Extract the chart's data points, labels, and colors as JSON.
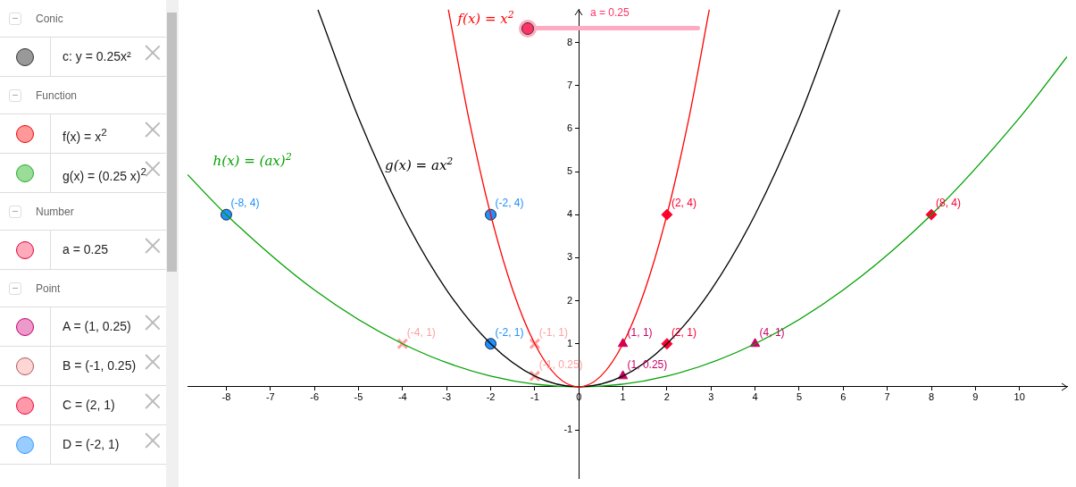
{
  "chart_data": [
    {
      "type": "other",
      "annotations": [
        "Conic",
        "c: y = 0.25x²",
        "Function",
        "f(x) = x$^{2}$",
        "g(x) = (0.25 x)$^{2}$",
        "Number",
        "a = 0.25",
        "Point",
        "A = (1, 0.25)",
        "B = (-1, 0.25)",
        "C = (2, 1)",
        "D = (-2, 1)"
      ]
    },
    {
      "type": "line",
      "xlim": [
        -8.88,
        11.08
      ],
      "ylim": [
        -2.12,
        8.78
      ],
      "xticks": [
        -8,
        -7,
        -6,
        -5,
        -4,
        -3,
        -2,
        -1,
        0,
        1,
        2,
        3,
        4,
        5,
        6,
        7,
        8,
        9,
        10
      ],
      "yticks": [
        -1,
        1,
        2,
        3,
        4,
        5,
        6,
        7,
        8
      ],
      "annotations": [
        "a = 0.25"
      ],
      "series": [
        {
          "type": "line",
          "name": "f(x) = x$^{2}$",
          "color": "#ff0000",
          "x": [
            -2.96,
            -2.5,
            -2,
            -1.5,
            -1,
            -0.5,
            0,
            0.5,
            1,
            1.5,
            2,
            2.5,
            2.96
          ],
          "values": [
            8.76,
            6.25,
            4,
            2.25,
            1,
            0.25,
            0,
            0.25,
            1,
            2.25,
            4,
            6.25,
            8.76
          ]
        },
        {
          "type": "line",
          "name": "g(x) = ax$^{2}$",
          "color": "#000000",
          "x": [
            -5.92,
            -5,
            -4,
            -3,
            -2,
            -1,
            0,
            1,
            2,
            3,
            4,
            5,
            5.92
          ],
          "values": [
            8.76,
            6.25,
            4,
            2.25,
            1,
            0.25,
            0,
            0.25,
            1,
            2.25,
            4,
            6.25,
            8.76
          ]
        },
        {
          "type": "line",
          "name": "h(x) = (ax)$^{2}$",
          "color": "#00a000",
          "x": [
            -8.88,
            -8,
            -6,
            -4,
            -2,
            0,
            2,
            4,
            6,
            8,
            10,
            11.08
          ],
          "values": [
            4.93,
            4,
            2.25,
            1,
            0.25,
            0,
            0.25,
            1,
            2.25,
            4,
            6.25,
            7.67
          ]
        },
        {
          "type": "scatter",
          "marker": "circle",
          "color": "#1e90ff",
          "x": [
            -8,
            -2,
            -2
          ],
          "values": [
            4,
            4,
            1
          ],
          "value_labels": [
            "(-8, 4)",
            "(-2, 4)",
            "(-2, 1)"
          ]
        },
        {
          "type": "scatter",
          "marker": "diamond",
          "color": "#ff0033",
          "x": [
            2,
            8,
            2
          ],
          "values": [
            4,
            4,
            1
          ],
          "value_labels": [
            "(2, 4)",
            "(8, 4)",
            "(2, 1)"
          ]
        },
        {
          "type": "scatter",
          "marker": "triangle",
          "color": "#cc0066",
          "x": [
            1,
            1,
            4
          ],
          "values": [
            1,
            0.25,
            1
          ],
          "value_labels": [
            "(1, 1)",
            "(1, 0.25)",
            "(4, 1)"
          ]
        },
        {
          "type": "scatter",
          "marker": "cross",
          "color": "#ffa0a0",
          "x": [
            -4,
            -1,
            -1
          ],
          "values": [
            1,
            1,
            0.25
          ],
          "value_labels": [
            "(-4, 1)",
            "(-1, 1)",
            "(-1, 0.25)"
          ]
        }
      ]
    }
  ]
}
